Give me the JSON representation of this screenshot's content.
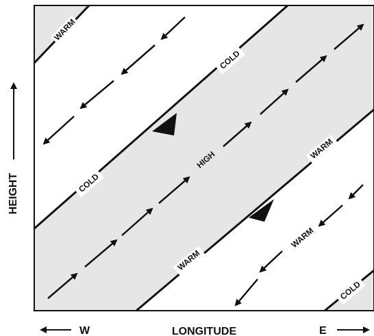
{
  "axes": {
    "y_label": "HEIGHT",
    "x_label": "LONGITUDE",
    "west_label": "W",
    "east_label": "E"
  },
  "band_labels": {
    "top_left_warm": "WARM",
    "upper_cold_right": "COLD",
    "upper_cold_left": "COLD",
    "center_high": "HIGH",
    "lower_warm_right": "WARM",
    "lower_warm_left": "WARM",
    "bottom_warm": "WARM",
    "bottom_right_cold": "COLD"
  },
  "colors": {
    "shaded_band": "#e6e6e6",
    "line": "#111111"
  }
}
